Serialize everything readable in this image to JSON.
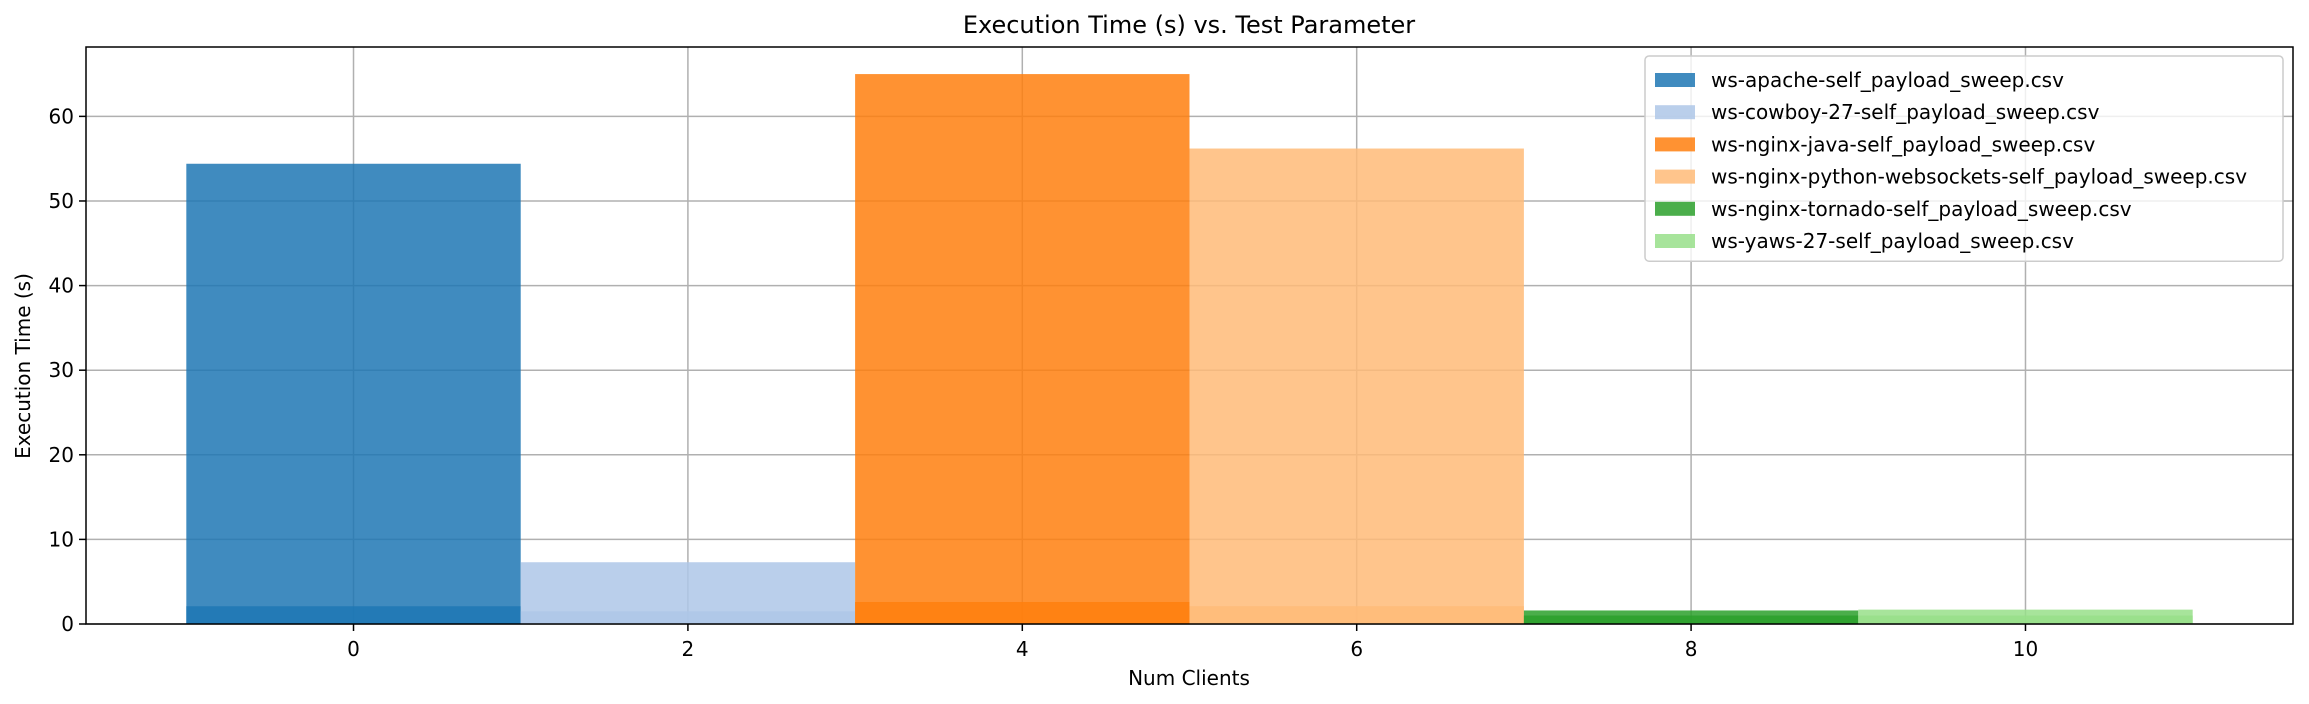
{
  "chart_data": {
    "type": "bar",
    "title": "Execution Time (s) vs. Test Parameter",
    "xlabel": "Num Clients",
    "ylabel": "Execution Time (s)",
    "xlim": [
      -1.6,
      11.6
    ],
    "ylim": [
      0,
      68.2
    ],
    "xticks": [
      0,
      2,
      4,
      6,
      8,
      10
    ],
    "yticks": [
      0,
      10,
      20,
      30,
      40,
      50,
      60
    ],
    "grid": true,
    "legend_position": "top-right",
    "bar_width": 2,
    "series": [
      {
        "name": "ws-apache-self_payload_sweep.csv",
        "color": "#1f77b4",
        "opacity": 0.85,
        "points": [
          {
            "x": 0,
            "y": 54.4
          },
          {
            "x": 0,
            "y": 2.1
          }
        ]
      },
      {
        "name": "ws-cowboy-27-self_payload_sweep.csv",
        "color": "#aec7e8",
        "opacity": 0.85,
        "points": [
          {
            "x": 2,
            "y": 7.3
          },
          {
            "x": 2,
            "y": 1.5
          }
        ]
      },
      {
        "name": "ws-nginx-java-self_payload_sweep.csv",
        "color": "#ff7f0e",
        "opacity": 0.85,
        "points": [
          {
            "x": 4,
            "y": 65.0
          },
          {
            "x": 4,
            "y": 2.6
          }
        ]
      },
      {
        "name": "ws-nginx-python-websockets-self_payload_sweep.csv",
        "color": "#ffbb78",
        "opacity": 0.85,
        "points": [
          {
            "x": 6,
            "y": 56.2
          },
          {
            "x": 6,
            "y": 2.1
          }
        ]
      },
      {
        "name": "ws-nginx-tornado-self_payload_sweep.csv",
        "color": "#2ca02c",
        "opacity": 0.85,
        "points": [
          {
            "x": 8,
            "y": 1.6
          },
          {
            "x": 8,
            "y": 1.0
          }
        ]
      },
      {
        "name": "ws-yaws-27-self_payload_sweep.csv",
        "color": "#98df8a",
        "opacity": 0.85,
        "points": [
          {
            "x": 10,
            "y": 1.7
          },
          {
            "x": 10,
            "y": 1.0
          }
        ]
      }
    ]
  }
}
